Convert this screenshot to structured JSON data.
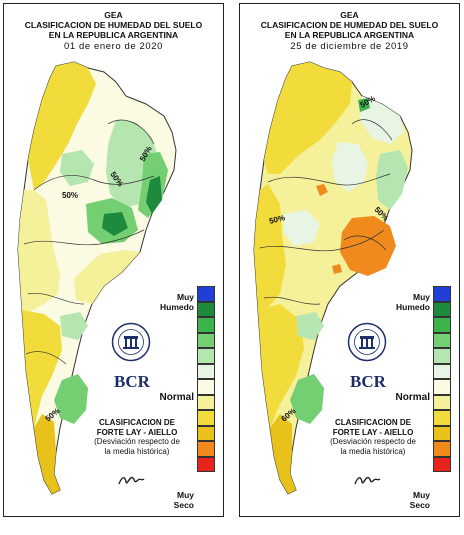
{
  "colors": {
    "muy_humedo": "#1f3fd6",
    "humedo_dark": "#1e8a3c",
    "humedo_mid": "#3cb44b",
    "humedo_light": "#74cf73",
    "leve_humedo": "#b6e6b0",
    "normal_light": "#e8f5e4",
    "normal": "#fbfbe4",
    "leve_seco": "#f5f09a",
    "seco": "#f1dc3b",
    "seco_mid": "#e8c21a",
    "muy_seco_orange": "#f08a1c",
    "muy_seco": "#e8231e",
    "bcr_blue": "#1d2f6b"
  },
  "legend": {
    "muy_humedo": [
      "Muy",
      "Humedo"
    ],
    "normal": "Normal",
    "muy_seco": [
      "Muy",
      "Seco"
    ],
    "swatches": [
      "#1f3fd6",
      "#1e8a3c",
      "#3cb44b",
      "#74cf73",
      "#b6e6b0",
      "#e8f5e4",
      "#fbfbe4",
      "#f5f09a",
      "#f1dc3b",
      "#e8c21a",
      "#f08a1c",
      "#e8231e"
    ]
  },
  "logo": {
    "seal_text": "BOLSA DE COMERCIO DE ROSARIO",
    "bcr": "BCR"
  },
  "method": {
    "line1": "CLASIFICACION DE",
    "line2": "FORTE LAY - AIELLO",
    "line3": "(Desviación respecto de",
    "line4": "la media histórica)"
  },
  "panels": [
    {
      "org": "GEA",
      "title1": "CLASIFICACION DE HUMEDAD DEL SUELO",
      "title2": "EN LA REPUBLICA ARGENTINA",
      "date": "01 de enero de 2020",
      "contour_labels": [
        "50%",
        "50%",
        "50%",
        "50%"
      ]
    },
    {
      "org": "GEA",
      "title1": "CLASIFICACION DE HUMEDAD DEL SUELO",
      "title2": "EN LA REPUBLICA ARGENTINA",
      "date": "25 de diciembre de 2019",
      "contour_labels": [
        "50%",
        "50%",
        "50%",
        "60%"
      ]
    }
  ]
}
